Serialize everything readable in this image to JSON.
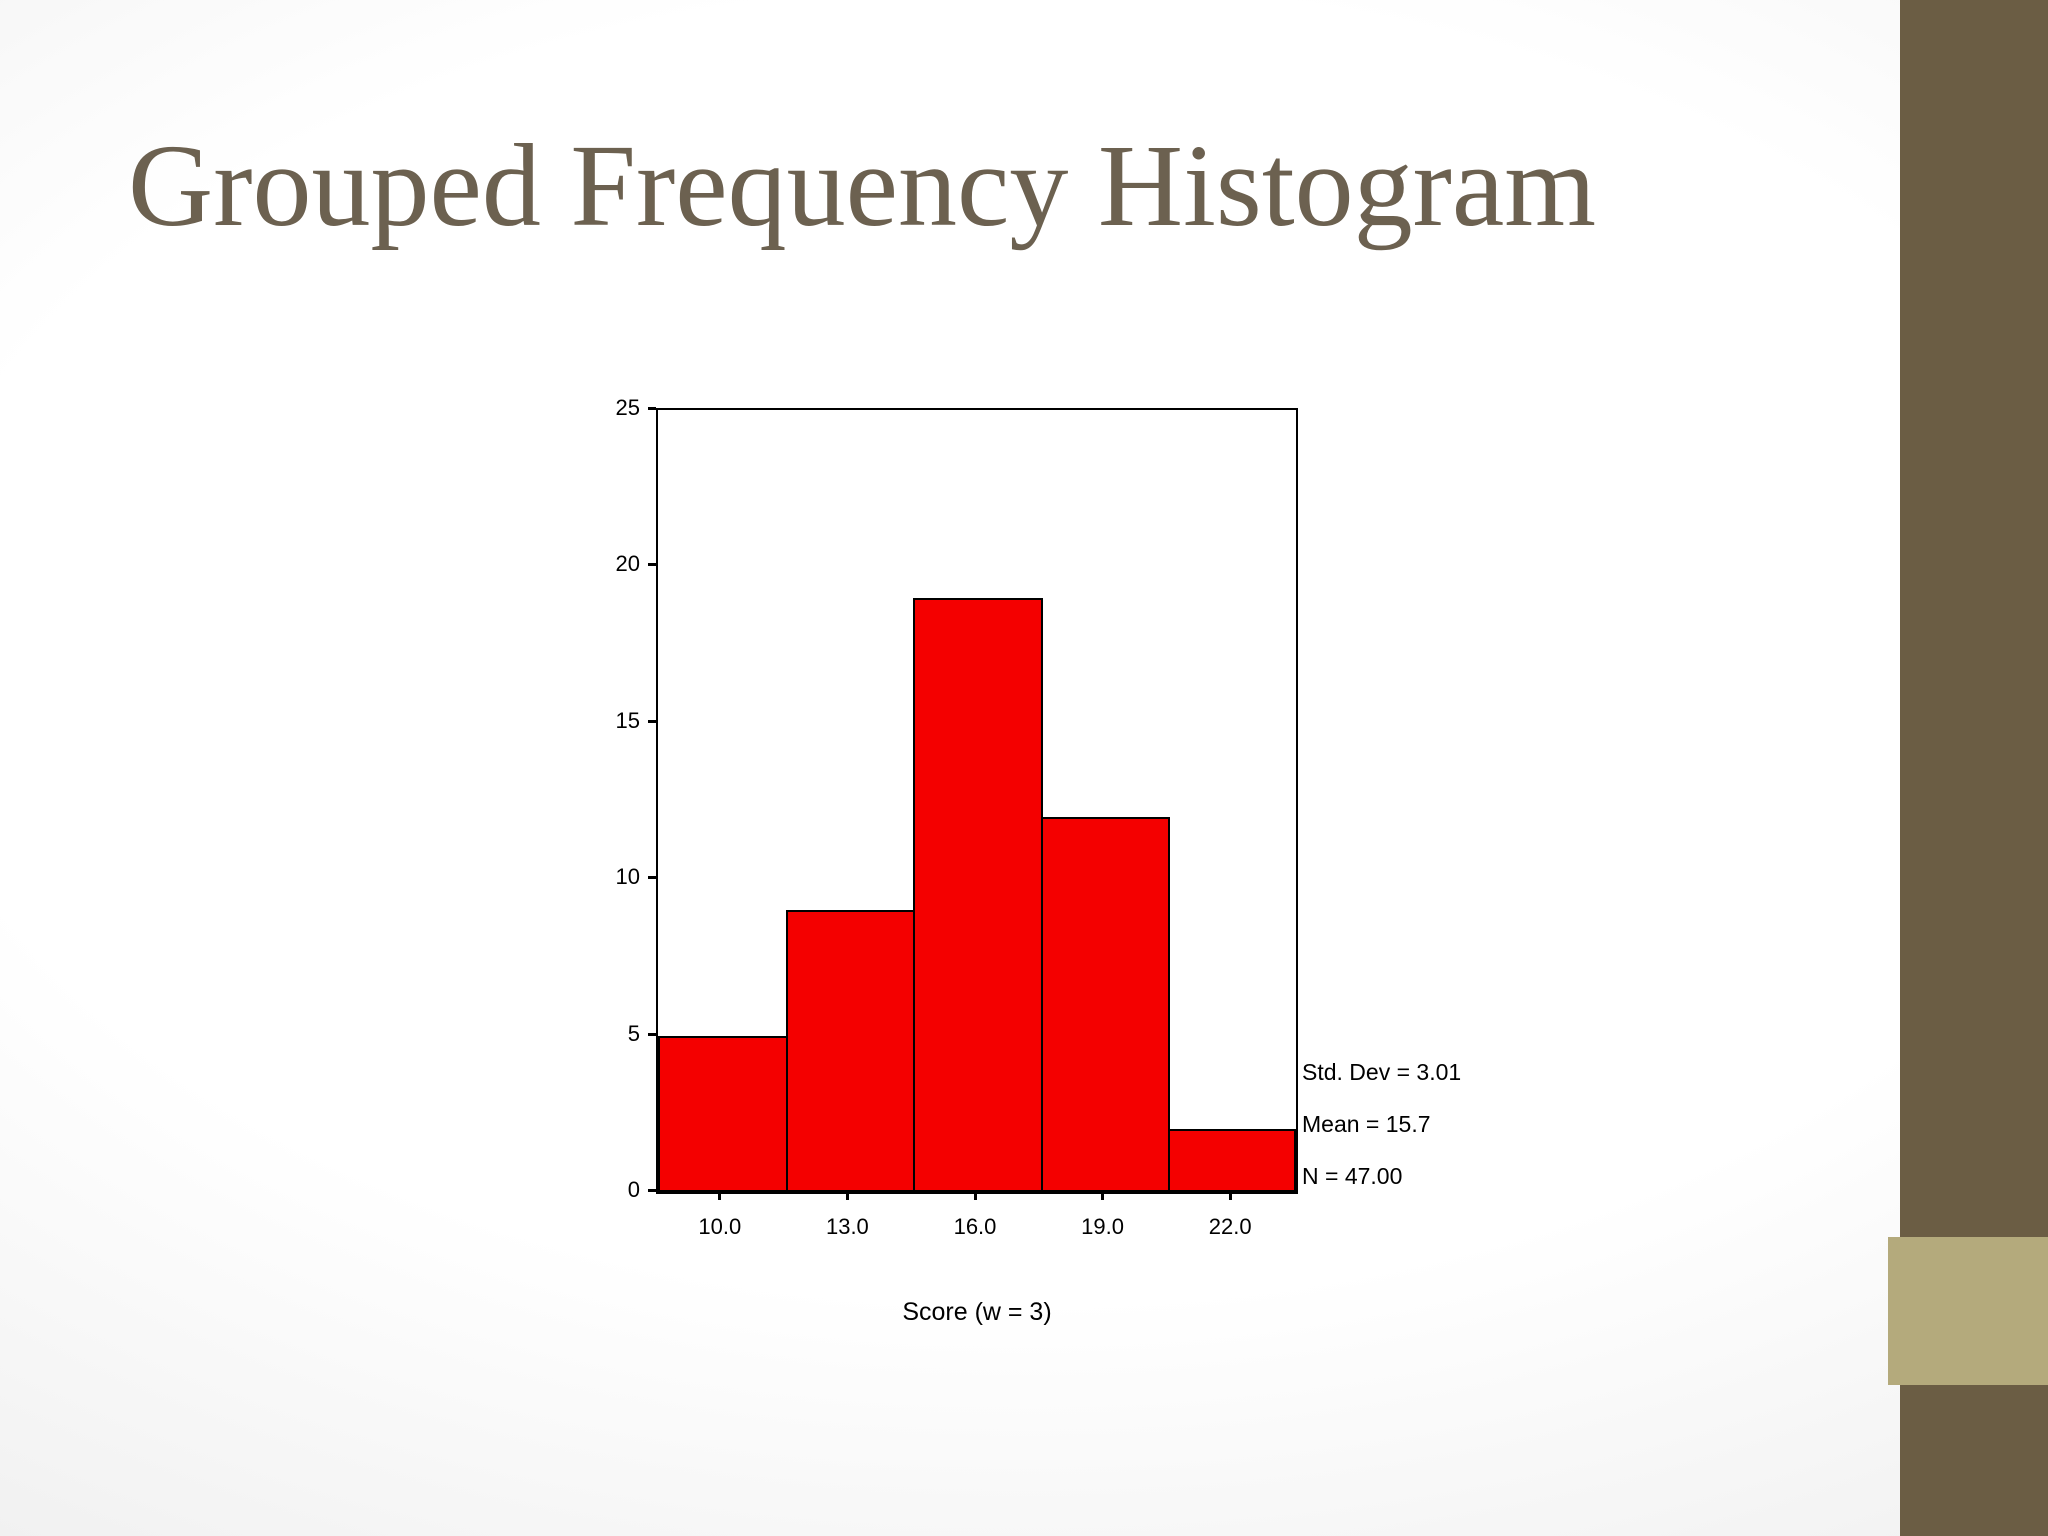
{
  "slide": {
    "title": "Grouped Frequency Histogram"
  },
  "chart_data": {
    "type": "bar",
    "title": "",
    "xlabel": "Score (w = 3)",
    "ylabel": "",
    "categories": [
      "10.0",
      "13.0",
      "16.0",
      "19.0",
      "22.0"
    ],
    "values": [
      5,
      9,
      19,
      12,
      2
    ],
    "ylim": [
      0,
      25
    ],
    "yticks": [
      0,
      5,
      10,
      15,
      20,
      25
    ],
    "grid": false,
    "legend": "none",
    "bar_color": "#f40000",
    "bar_border_color": "#000000",
    "annotations": [
      "Std. Dev = 3.01",
      "Mean = 15.7",
      "N = 47.00"
    ]
  },
  "theme": {
    "title_color": "#6c6150",
    "band_color": "#6b5d44",
    "accent_square_color": "#b4aa7c",
    "plot_background": "#ffffff"
  }
}
